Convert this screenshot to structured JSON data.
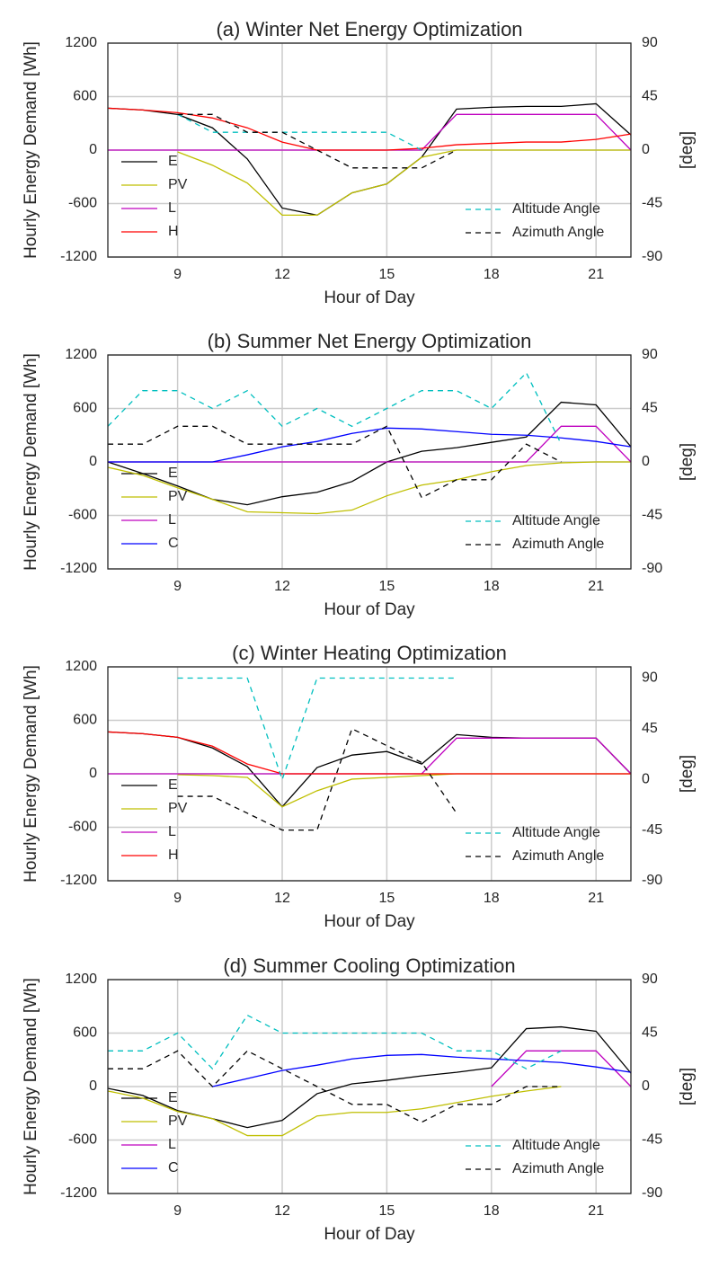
{
  "chart_data": [
    {
      "type": "line",
      "title": "(a) Winter Net Energy Optimization",
      "xlabel": "Hour of Day",
      "ylabel": "Hourly Energy Demand [Wh]",
      "y2label": "[deg]",
      "x": [
        7,
        8,
        9,
        10,
        11,
        12,
        13,
        14,
        15,
        16,
        17,
        18,
        19,
        20,
        21,
        22
      ],
      "xlim": [
        7,
        22
      ],
      "xticks": [
        9,
        12,
        15,
        18,
        21
      ],
      "ylim": [
        -1200,
        1200
      ],
      "yticks": [
        -1200,
        -600,
        0,
        600,
        1200
      ],
      "y2lim": [
        -90,
        90
      ],
      "y2ticks": [
        -90,
        -45,
        0,
        45,
        90
      ],
      "grid": true,
      "series": [
        {
          "name": "E",
          "color": "#000000",
          "values": [
            470,
            450,
            400,
            250,
            -100,
            -650,
            -730,
            -480,
            -380,
            -80,
            460,
            480,
            490,
            490,
            520,
            170
          ]
        },
        {
          "name": "PV",
          "color": "#bfbf00",
          "values": [
            null,
            null,
            -20,
            -170,
            -370,
            -730,
            -730,
            -480,
            -380,
            -80,
            0,
            0,
            0,
            0,
            0,
            0
          ]
        },
        {
          "name": "L",
          "color": "#bf00bf",
          "values": [
            0,
            0,
            0,
            0,
            0,
            0,
            0,
            0,
            0,
            0,
            400,
            400,
            400,
            400,
            400,
            0
          ]
        },
        {
          "name": "H",
          "color": "#ff0000",
          "values": [
            470,
            450,
            420,
            360,
            250,
            90,
            0,
            0,
            0,
            20,
            60,
            75,
            90,
            90,
            120,
            180
          ]
        },
        {
          "name": "Altitude Angle",
          "color": "#00bfbf",
          "axis": "y2",
          "dashed": true,
          "values": [
            null,
            null,
            30,
            15,
            15,
            15,
            15,
            15,
            15,
            0,
            null,
            null,
            null,
            null,
            null,
            null
          ]
        },
        {
          "name": "Azimuth Angle",
          "color": "#000000",
          "axis": "y2",
          "dashed": true,
          "values": [
            null,
            null,
            30,
            30,
            15,
            15,
            0,
            -15,
            -15,
            -15,
            0,
            null,
            null,
            null,
            null,
            null
          ]
        }
      ]
    },
    {
      "type": "line",
      "title": "(b) Summer Net Energy Optimization",
      "xlabel": "Hour of Day",
      "ylabel": "Hourly Energy Demand [Wh]",
      "y2label": "[deg]",
      "x": [
        7,
        8,
        9,
        10,
        11,
        12,
        13,
        14,
        15,
        16,
        17,
        18,
        19,
        20,
        21,
        22
      ],
      "xlim": [
        7,
        22
      ],
      "xticks": [
        9,
        12,
        15,
        18,
        21
      ],
      "ylim": [
        -1200,
        1200
      ],
      "yticks": [
        -1200,
        -600,
        0,
        600,
        1200
      ],
      "y2lim": [
        -90,
        90
      ],
      "y2ticks": [
        -90,
        -45,
        0,
        45,
        90
      ],
      "grid": true,
      "series": [
        {
          "name": "E",
          "color": "#000000",
          "values": [
            0,
            -130,
            -270,
            -420,
            -480,
            -390,
            -340,
            -220,
            0,
            120,
            160,
            220,
            280,
            670,
            640,
            170
          ]
        },
        {
          "name": "PV",
          "color": "#bfbf00",
          "values": [
            -60,
            -150,
            -290,
            -420,
            -560,
            -570,
            -580,
            -540,
            -380,
            -260,
            -200,
            -110,
            -40,
            -10,
            0,
            0
          ]
        },
        {
          "name": "L",
          "color": "#bf00bf",
          "values": [
            0,
            0,
            0,
            0,
            0,
            0,
            0,
            0,
            0,
            0,
            0,
            0,
            0,
            400,
            400,
            0
          ]
        },
        {
          "name": "C",
          "color": "#0000ff",
          "values": [
            0,
            0,
            0,
            0,
            80,
            170,
            230,
            320,
            380,
            370,
            340,
            310,
            300,
            270,
            230,
            170
          ]
        },
        {
          "name": "Altitude Angle",
          "color": "#00bfbf",
          "axis": "y2",
          "dashed": true,
          "values": [
            30,
            60,
            60,
            45,
            60,
            30,
            45,
            30,
            45,
            60,
            60,
            45,
            75,
            15,
            null,
            null
          ]
        },
        {
          "name": "Azimuth Angle",
          "color": "#000000",
          "axis": "y2",
          "dashed": true,
          "values": [
            15,
            15,
            30,
            30,
            15,
            15,
            15,
            15,
            30,
            -30,
            -15,
            -15,
            15,
            0,
            null,
            null
          ]
        }
      ]
    },
    {
      "type": "line",
      "title": "(c) Winter Heating Optimization",
      "xlabel": "Hour of Day",
      "ylabel": "Hourly Energy Demand [Wh]",
      "y2label": "[deg]",
      "x": [
        7,
        8,
        9,
        10,
        11,
        12,
        13,
        14,
        15,
        16,
        17,
        18,
        19,
        20,
        21,
        22
      ],
      "xlim": [
        7,
        22
      ],
      "xticks": [
        9,
        12,
        15,
        18,
        21
      ],
      "ylim": [
        -1200,
        1200
      ],
      "yticks": [
        -1200,
        -600,
        0,
        600,
        1200
      ],
      "y2lim": [
        -90,
        100
      ],
      "y2ticks": [
        -90,
        -45,
        0,
        45,
        90
      ],
      "grid": true,
      "series": [
        {
          "name": "E",
          "color": "#000000",
          "values": [
            470,
            450,
            410,
            290,
            80,
            -370,
            70,
            210,
            250,
            110,
            440,
            410,
            400,
            400,
            400,
            0
          ]
        },
        {
          "name": "PV",
          "color": "#bfbf00",
          "values": [
            null,
            null,
            -10,
            -20,
            -40,
            -370,
            -190,
            -60,
            -40,
            -20,
            0,
            0,
            0,
            0,
            0,
            0
          ]
        },
        {
          "name": "L",
          "color": "#bf00bf",
          "values": [
            0,
            0,
            0,
            0,
            0,
            0,
            0,
            0,
            0,
            0,
            400,
            400,
            400,
            400,
            400,
            0
          ]
        },
        {
          "name": "H",
          "color": "#ff0000",
          "values": [
            470,
            450,
            410,
            310,
            110,
            0,
            0,
            0,
            0,
            0,
            0,
            0,
            0,
            0,
            0,
            0
          ]
        },
        {
          "name": "Altitude Angle",
          "color": "#00bfbf",
          "axis": "y2",
          "dashed": true,
          "values": [
            null,
            null,
            90,
            90,
            90,
            0,
            90,
            90,
            90,
            90,
            90,
            null,
            null,
            null,
            null,
            null
          ]
        },
        {
          "name": "Azimuth Angle",
          "color": "#000000",
          "axis": "y2",
          "dashed": true,
          "values": [
            null,
            null,
            -15,
            -15,
            -30,
            -45,
            -45,
            45,
            30,
            15,
            -30,
            null,
            null,
            null,
            null,
            null
          ]
        }
      ]
    },
    {
      "type": "line",
      "title": "(d) Summer Cooling Optimization",
      "xlabel": "Hour of Day",
      "ylabel": "Hourly Energy Demand [Wh]",
      "y2label": "[deg]",
      "x": [
        7,
        8,
        9,
        10,
        11,
        12,
        13,
        14,
        15,
        16,
        17,
        18,
        19,
        20,
        21,
        22
      ],
      "xlim": [
        7,
        22
      ],
      "xticks": [
        9,
        12,
        15,
        18,
        21
      ],
      "ylim": [
        -1200,
        1200
      ],
      "yticks": [
        -1200,
        -600,
        0,
        600,
        1200
      ],
      "y2lim": [
        -90,
        90
      ],
      "y2ticks": [
        -90,
        -45,
        0,
        45,
        90
      ],
      "grid": true,
      "series": [
        {
          "name": "E",
          "color": "#000000",
          "values": [
            -20,
            -100,
            -270,
            -360,
            -460,
            -380,
            -80,
            30,
            70,
            120,
            160,
            210,
            650,
            670,
            620,
            150
          ]
        },
        {
          "name": "PV",
          "color": "#bfbf00",
          "values": [
            -50,
            -130,
            -280,
            -360,
            -550,
            -550,
            -330,
            -290,
            -290,
            -250,
            -180,
            -110,
            -50,
            0,
            null,
            null
          ]
        },
        {
          "name": "L",
          "color": "#bf00bf",
          "values": [
            null,
            null,
            null,
            null,
            null,
            null,
            null,
            null,
            null,
            null,
            null,
            0,
            400,
            400,
            400,
            0
          ]
        },
        {
          "name": "C",
          "color": "#0000ff",
          "values": [
            null,
            null,
            null,
            0,
            90,
            180,
            240,
            310,
            350,
            360,
            330,
            310,
            290,
            270,
            220,
            160
          ]
        },
        {
          "name": "Altitude Angle",
          "color": "#00bfbf",
          "axis": "y2",
          "dashed": true,
          "values": [
            30,
            30,
            45,
            15,
            60,
            45,
            45,
            45,
            45,
            45,
            30,
            30,
            15,
            30,
            null,
            null
          ]
        },
        {
          "name": "Azimuth Angle",
          "color": "#000000",
          "axis": "y2",
          "dashed": true,
          "values": [
            15,
            15,
            30,
            0,
            30,
            15,
            0,
            -15,
            -15,
            -30,
            -15,
            -15,
            0,
            0,
            null,
            null
          ]
        }
      ]
    }
  ]
}
